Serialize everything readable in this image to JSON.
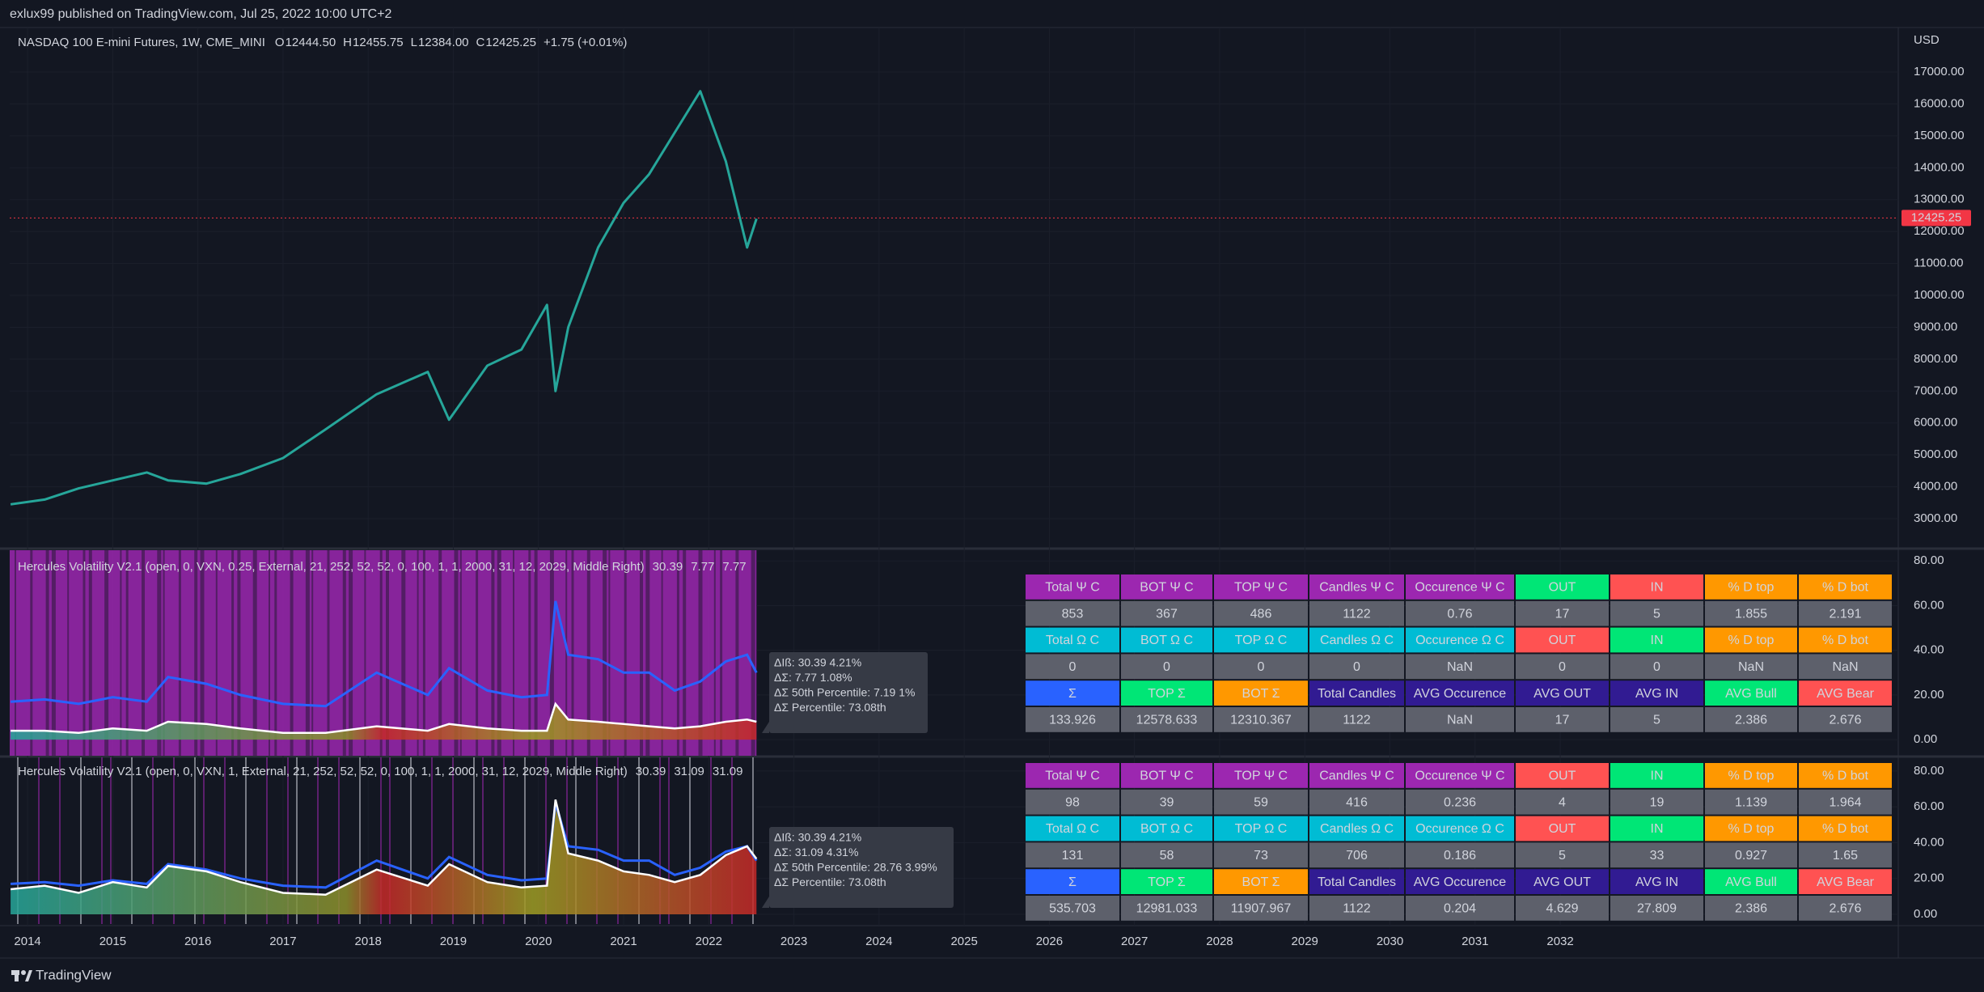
{
  "header": {
    "text": "exlux99 published on TradingView.com, Jul 25, 2022 10:00 UTC+2"
  },
  "main_pane": {
    "symbol": "NASDAQ 100 E-mini Futures, 1W, CME_MINI",
    "ohlc": [
      {
        "label": "O",
        "value": "12444.50"
      },
      {
        "label": "H",
        "value": "12455.75"
      },
      {
        "label": "L",
        "value": "12384.00"
      },
      {
        "label": "C",
        "value": "12425.25"
      }
    ],
    "change": "+1.75 (+0.01%)",
    "currency": "USD",
    "last_price": {
      "value": 12425.25,
      "label": "12425.25"
    },
    "ylim": [
      2113,
      18395
    ],
    "yticks": [
      {
        "value": 3000,
        "label": "3000.00"
      },
      {
        "value": 4000,
        "label": "4000.00"
      },
      {
        "value": 5000,
        "label": "5000.00"
      },
      {
        "value": 6000,
        "label": "6000.00"
      },
      {
        "value": 7000,
        "label": "7000.00"
      },
      {
        "value": 8000,
        "label": "8000.00"
      },
      {
        "value": 9000,
        "label": "9000.00"
      },
      {
        "value": 10000,
        "label": "10000.00"
      },
      {
        "value": 11000,
        "label": "11000.00"
      },
      {
        "value": 12000,
        "label": "12000.00"
      },
      {
        "value": 13000,
        "label": "13000.00"
      },
      {
        "value": 14000,
        "label": "14000.00"
      },
      {
        "value": 15000,
        "label": "15000.00"
      },
      {
        "value": 16000,
        "label": "16000.00"
      },
      {
        "value": 17000,
        "label": "17000.00"
      }
    ],
    "close": [
      3450,
      3600,
      3950,
      4200,
      4450,
      4200,
      4100,
      4400,
      4900,
      5800,
      6900,
      7600,
      6100,
      7800,
      8300,
      9700,
      7000,
      9000,
      11500,
      12900,
      13800,
      15100,
      16400,
      14200,
      11500,
      12400
    ],
    "color": "#26a69a"
  },
  "time_axis": {
    "xlim": [
      2013.79,
      2035.97
    ],
    "points": [
      2013.8,
      2014.2,
      2014.6,
      2015.0,
      2015.4,
      2015.65,
      2016.1,
      2016.5,
      2017.0,
      2017.5,
      2018.1,
      2018.7,
      2018.95,
      2019.4,
      2019.8,
      2020.1,
      2020.2,
      2020.35,
      2020.7,
      2021.0,
      2021.3,
      2021.6,
      2021.9,
      2022.2,
      2022.45,
      2022.56
    ],
    "ticks": [
      2014,
      2015,
      2016,
      2017,
      2018,
      2019,
      2020,
      2021,
      2022,
      2023,
      2024,
      2025,
      2026,
      2027,
      2028,
      2029,
      2030,
      2031,
      2032
    ]
  },
  "indicator_panes": [
    {
      "title": "Hercules Volatility V2.1 (open, 0, VXN, 0.25, External, 21, 252, 52, 52, 0, 100, 1, 1, 2000, 31, 12, 2029, Middle Right)",
      "values": [
        {
          "text": "30.39",
          "color": "#2962ff"
        },
        {
          "text": "7.77",
          "color": "#ff9800"
        },
        {
          "text": "7.77",
          "color": "#ffffff"
        }
      ],
      "ylim": [
        -7.2,
        84.8
      ],
      "yticks": [
        {
          "value": 0,
          "label": "0.00"
        },
        {
          "value": 20,
          "label": "20.00"
        },
        {
          "value": 40,
          "label": "40.00"
        },
        {
          "value": 60,
          "label": "60.00"
        },
        {
          "value": 80,
          "label": "80.00"
        }
      ],
      "vxn": [
        17,
        18,
        16,
        19,
        17,
        28,
        25,
        20,
        16,
        15,
        30,
        20,
        32,
        22,
        19,
        20,
        62,
        38,
        36,
        30,
        30,
        22,
        26,
        35,
        38,
        30
      ],
      "delta_sigma": [
        4,
        4,
        3,
        5,
        4,
        8,
        7,
        5,
        3,
        3,
        6,
        4,
        7,
        5,
        4,
        4,
        16,
        9,
        8,
        7,
        6,
        5,
        6,
        8,
        9,
        8
      ],
      "tooltip": [
        "ΔIß: 30.39  4.21%",
        "ΔΣ: 7.77  1.08%",
        "ΔΣ 50th Percentile: 7.19  1%",
        "ΔΣ Percentile: 73.08th"
      ],
      "table": {
        "rows": [
          {
            "cells": [
              "Total Ψ C",
              "BOT Ψ C",
              "TOP Ψ C",
              "Candles Ψ C",
              "Occurence Ψ C",
              "OUT",
              "IN",
              "% D top",
              "% D bot"
            ],
            "colors": [
              "#9c27b0",
              "#9c27b0",
              "#9c27b0",
              "#9c27b0",
              "#9c27b0",
              "#00e676",
              "#ff5252",
              "#ff9800",
              "#ff9800"
            ]
          },
          {
            "cells": [
              "853",
              "367",
              "486",
              "1122",
              "0.76",
              "17",
              "5",
              "1.855",
              "2.191"
            ],
            "colors": [
              "#5d606b",
              "#5d606b",
              "#5d606b",
              "#5d606b",
              "#5d606b",
              "#5d606b",
              "#5d606b",
              "#5d606b",
              "#5d606b"
            ]
          },
          {
            "cells": [
              "Total Ω C",
              "BOT Ω C",
              "TOP Ω C",
              "Candles Ω C",
              "Occurence Ω C",
              "OUT",
              "IN",
              "% D top",
              "% D bot"
            ],
            "colors": [
              "#00bcd4",
              "#00bcd4",
              "#00bcd4",
              "#00bcd4",
              "#00bcd4",
              "#ff5252",
              "#00e676",
              "#ff9800",
              "#ff9800"
            ]
          },
          {
            "cells": [
              "0",
              "0",
              "0",
              "0",
              "NaN",
              "0",
              "0",
              "NaN",
              "NaN"
            ],
            "colors": [
              "#5d606b",
              "#5d606b",
              "#5d606b",
              "#5d606b",
              "#5d606b",
              "#5d606b",
              "#5d606b",
              "#5d606b",
              "#5d606b"
            ]
          },
          {
            "cells": [
              "Σ",
              "TOP Σ",
              "BOT Σ",
              "Total Candles",
              "AVG Occurence",
              "AVG OUT",
              "AVG IN",
              "AVG Bull",
              "AVG Bear"
            ],
            "colors": [
              "#2962ff",
              "#00e676",
              "#ff9800",
              "#311b92",
              "#311b92",
              "#311b92",
              "#311b92",
              "#00e676",
              "#ff5252"
            ]
          },
          {
            "cells": [
              "133.926",
              "12578.633",
              "12310.367",
              "1122",
              "NaN",
              "17",
              "5",
              "2.386",
              "2.676"
            ],
            "colors": [
              "#5d606b",
              "#5d606b",
              "#5d606b",
              "#5d606b",
              "#5d606b",
              "#5d606b",
              "#5d606b",
              "#5d606b",
              "#5d606b"
            ]
          }
        ]
      }
    },
    {
      "title": "Hercules Volatility V2.1 (open, 0, VXN, 1, External, 21, 252, 52, 52, 0, 100, 1, 1, 2000, 31, 12, 2029, Middle Right)",
      "values": [
        {
          "text": "30.39",
          "color": "#2962ff"
        },
        {
          "text": "31.09",
          "color": "#ff9800"
        },
        {
          "text": "31.09",
          "color": "#ffffff"
        }
      ],
      "ylim": [
        -5.4,
        87.6
      ],
      "yticks": [
        {
          "value": 0,
          "label": "0.00"
        },
        {
          "value": 20,
          "label": "20.00"
        },
        {
          "value": 40,
          "label": "40.00"
        },
        {
          "value": 60,
          "label": "60.00"
        },
        {
          "value": 80,
          "label": "80.00"
        }
      ],
      "vxn": [
        17,
        18,
        16,
        19,
        17,
        28,
        25,
        20,
        16,
        15,
        30,
        20,
        32,
        22,
        19,
        20,
        62,
        38,
        36,
        30,
        30,
        22,
        26,
        35,
        38,
        30
      ],
      "delta_sigma": [
        14,
        16,
        12,
        18,
        15,
        27,
        24,
        18,
        12,
        11,
        25,
        16,
        28,
        18,
        15,
        16,
        64,
        34,
        30,
        24,
        22,
        18,
        22,
        33,
        38,
        31
      ],
      "tooltip": [
        "ΔIß: 30.39  4.21%",
        "ΔΣ: 31.09  4.31%",
        "ΔΣ 50th Percentile: 28.76  3.99%",
        "ΔΣ Percentile: 73.08th"
      ],
      "table": {
        "rows": [
          {
            "cells": [
              "Total Ψ C",
              "BOT Ψ C",
              "TOP Ψ C",
              "Candles Ψ C",
              "Occurence Ψ C",
              "OUT",
              "IN",
              "% D top",
              "% D bot"
            ],
            "colors": [
              "#9c27b0",
              "#9c27b0",
              "#9c27b0",
              "#9c27b0",
              "#9c27b0",
              "#ff5252",
              "#00e676",
              "#ff9800",
              "#ff9800"
            ]
          },
          {
            "cells": [
              "98",
              "39",
              "59",
              "416",
              "0.236",
              "4",
              "19",
              "1.139",
              "1.964"
            ],
            "colors": [
              "#5d606b",
              "#5d606b",
              "#5d606b",
              "#5d606b",
              "#5d606b",
              "#5d606b",
              "#5d606b",
              "#5d606b",
              "#5d606b"
            ]
          },
          {
            "cells": [
              "Total Ω C",
              "BOT Ω C",
              "TOP Ω C",
              "Candles Ω C",
              "Occurence Ω C",
              "OUT",
              "IN",
              "% D top",
              "% D bot"
            ],
            "colors": [
              "#00bcd4",
              "#00bcd4",
              "#00bcd4",
              "#00bcd4",
              "#00bcd4",
              "#ff5252",
              "#00e676",
              "#ff9800",
              "#ff9800"
            ]
          },
          {
            "cells": [
              "131",
              "58",
              "73",
              "706",
              "0.186",
              "5",
              "33",
              "0.927",
              "1.65"
            ],
            "colors": [
              "#5d606b",
              "#5d606b",
              "#5d606b",
              "#5d606b",
              "#5d606b",
              "#5d606b",
              "#5d606b",
              "#5d606b",
              "#5d606b"
            ]
          },
          {
            "cells": [
              "Σ",
              "TOP Σ",
              "BOT Σ",
              "Total Candles",
              "AVG Occurence",
              "AVG OUT",
              "AVG IN",
              "AVG Bull",
              "AVG Bear"
            ],
            "colors": [
              "#2962ff",
              "#00e676",
              "#ff9800",
              "#311b92",
              "#311b92",
              "#311b92",
              "#311b92",
              "#00e676",
              "#ff5252"
            ]
          },
          {
            "cells": [
              "535.703",
              "12981.033",
              "11907.967",
              "1122",
              "0.204",
              "4.629",
              "27.809",
              "2.386",
              "2.676"
            ],
            "colors": [
              "#5d606b",
              "#5d606b",
              "#5d606b",
              "#5d606b",
              "#5d606b",
              "#5d606b",
              "#5d606b",
              "#5d606b",
              "#5d606b"
            ]
          }
        ]
      }
    }
  ],
  "footer": {
    "brand": "TradingView"
  }
}
